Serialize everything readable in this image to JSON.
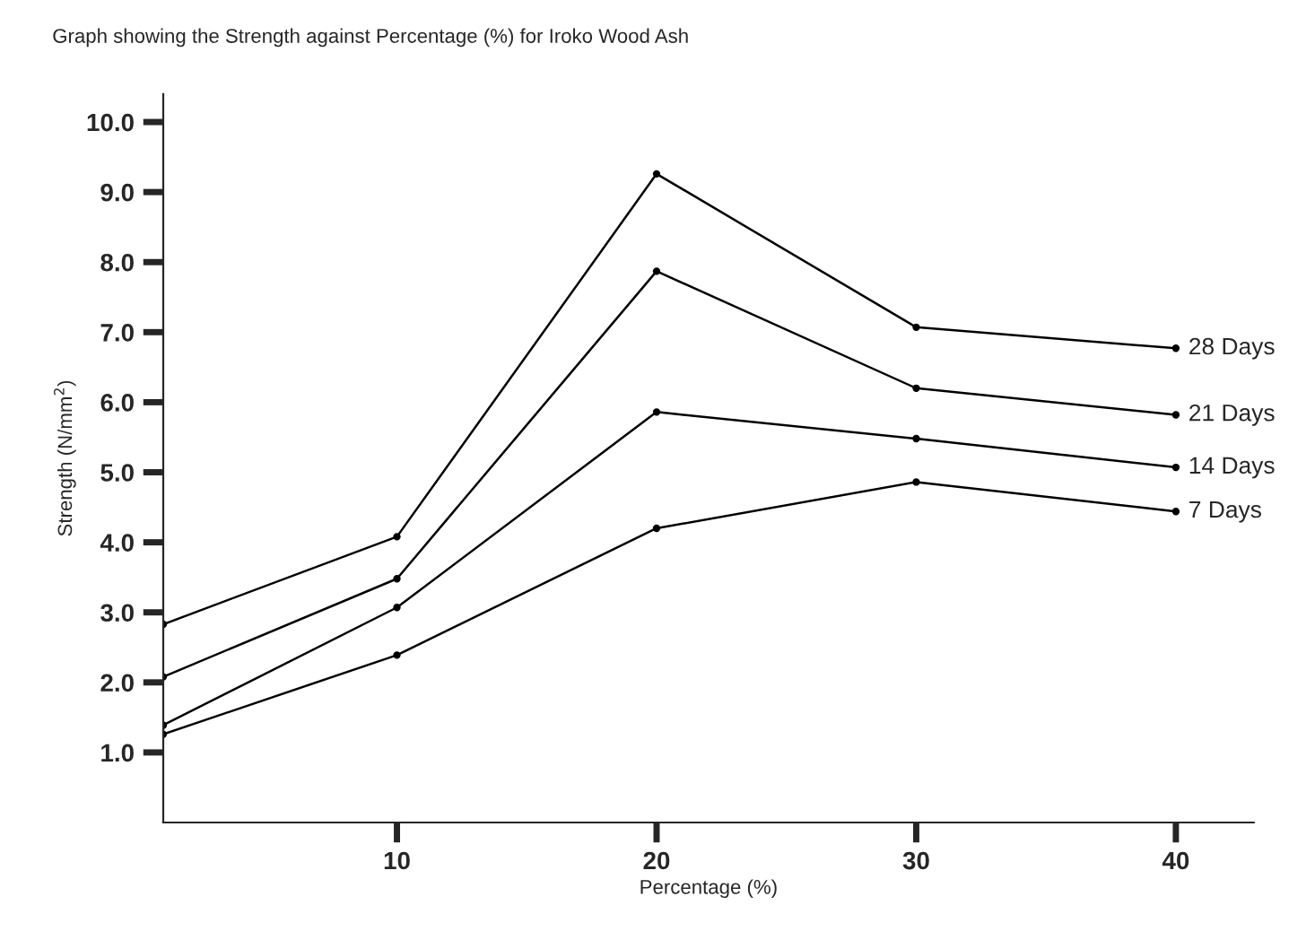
{
  "chart_data": {
    "type": "line",
    "title": "Graph showing the Strength against Percentage (%) for Iroko Wood Ash",
    "xlabel": "Percentage (%)",
    "ylabel": "Strength (N/mm$^{2}$)",
    "x": [
      1,
      10,
      20,
      30,
      40
    ],
    "series": [
      {
        "name": "28 Days",
        "color": "#000000",
        "values": [
          2.83,
          4.08,
          9.26,
          7.07,
          6.77
        ]
      },
      {
        "name": "21 Days",
        "color": "#000000",
        "values": [
          2.08,
          3.48,
          7.87,
          6.2,
          5.82
        ]
      },
      {
        "name": "14 Days",
        "color": "#000000",
        "values": [
          1.39,
          3.07,
          5.86,
          5.48,
          5.07
        ]
      },
      {
        "name": "7 Days",
        "color": "#000000",
        "values": [
          1.26,
          2.39,
          4.2,
          4.86,
          4.44
        ]
      }
    ],
    "xlim": [
      1,
      43
    ],
    "xticks": [
      10,
      20,
      30,
      40
    ],
    "ylim": [
      0,
      10.4
    ],
    "yticks": [
      {
        "value": 1,
        "label": "1.0"
      },
      {
        "value": 2,
        "label": "2.0"
      },
      {
        "value": 3,
        "label": "3.0"
      },
      {
        "value": 4,
        "label": "4.0"
      },
      {
        "value": 5,
        "label": "5.0"
      },
      {
        "value": 6,
        "label": "6.0"
      },
      {
        "value": 7,
        "label": "7.0"
      },
      {
        "value": 8,
        "label": "8.0"
      },
      {
        "value": 9,
        "label": "9.0"
      },
      {
        "value": 10,
        "label": "10.0"
      }
    ],
    "grid": false,
    "legend": false,
    "marker": "circle",
    "line_style": "solid"
  }
}
